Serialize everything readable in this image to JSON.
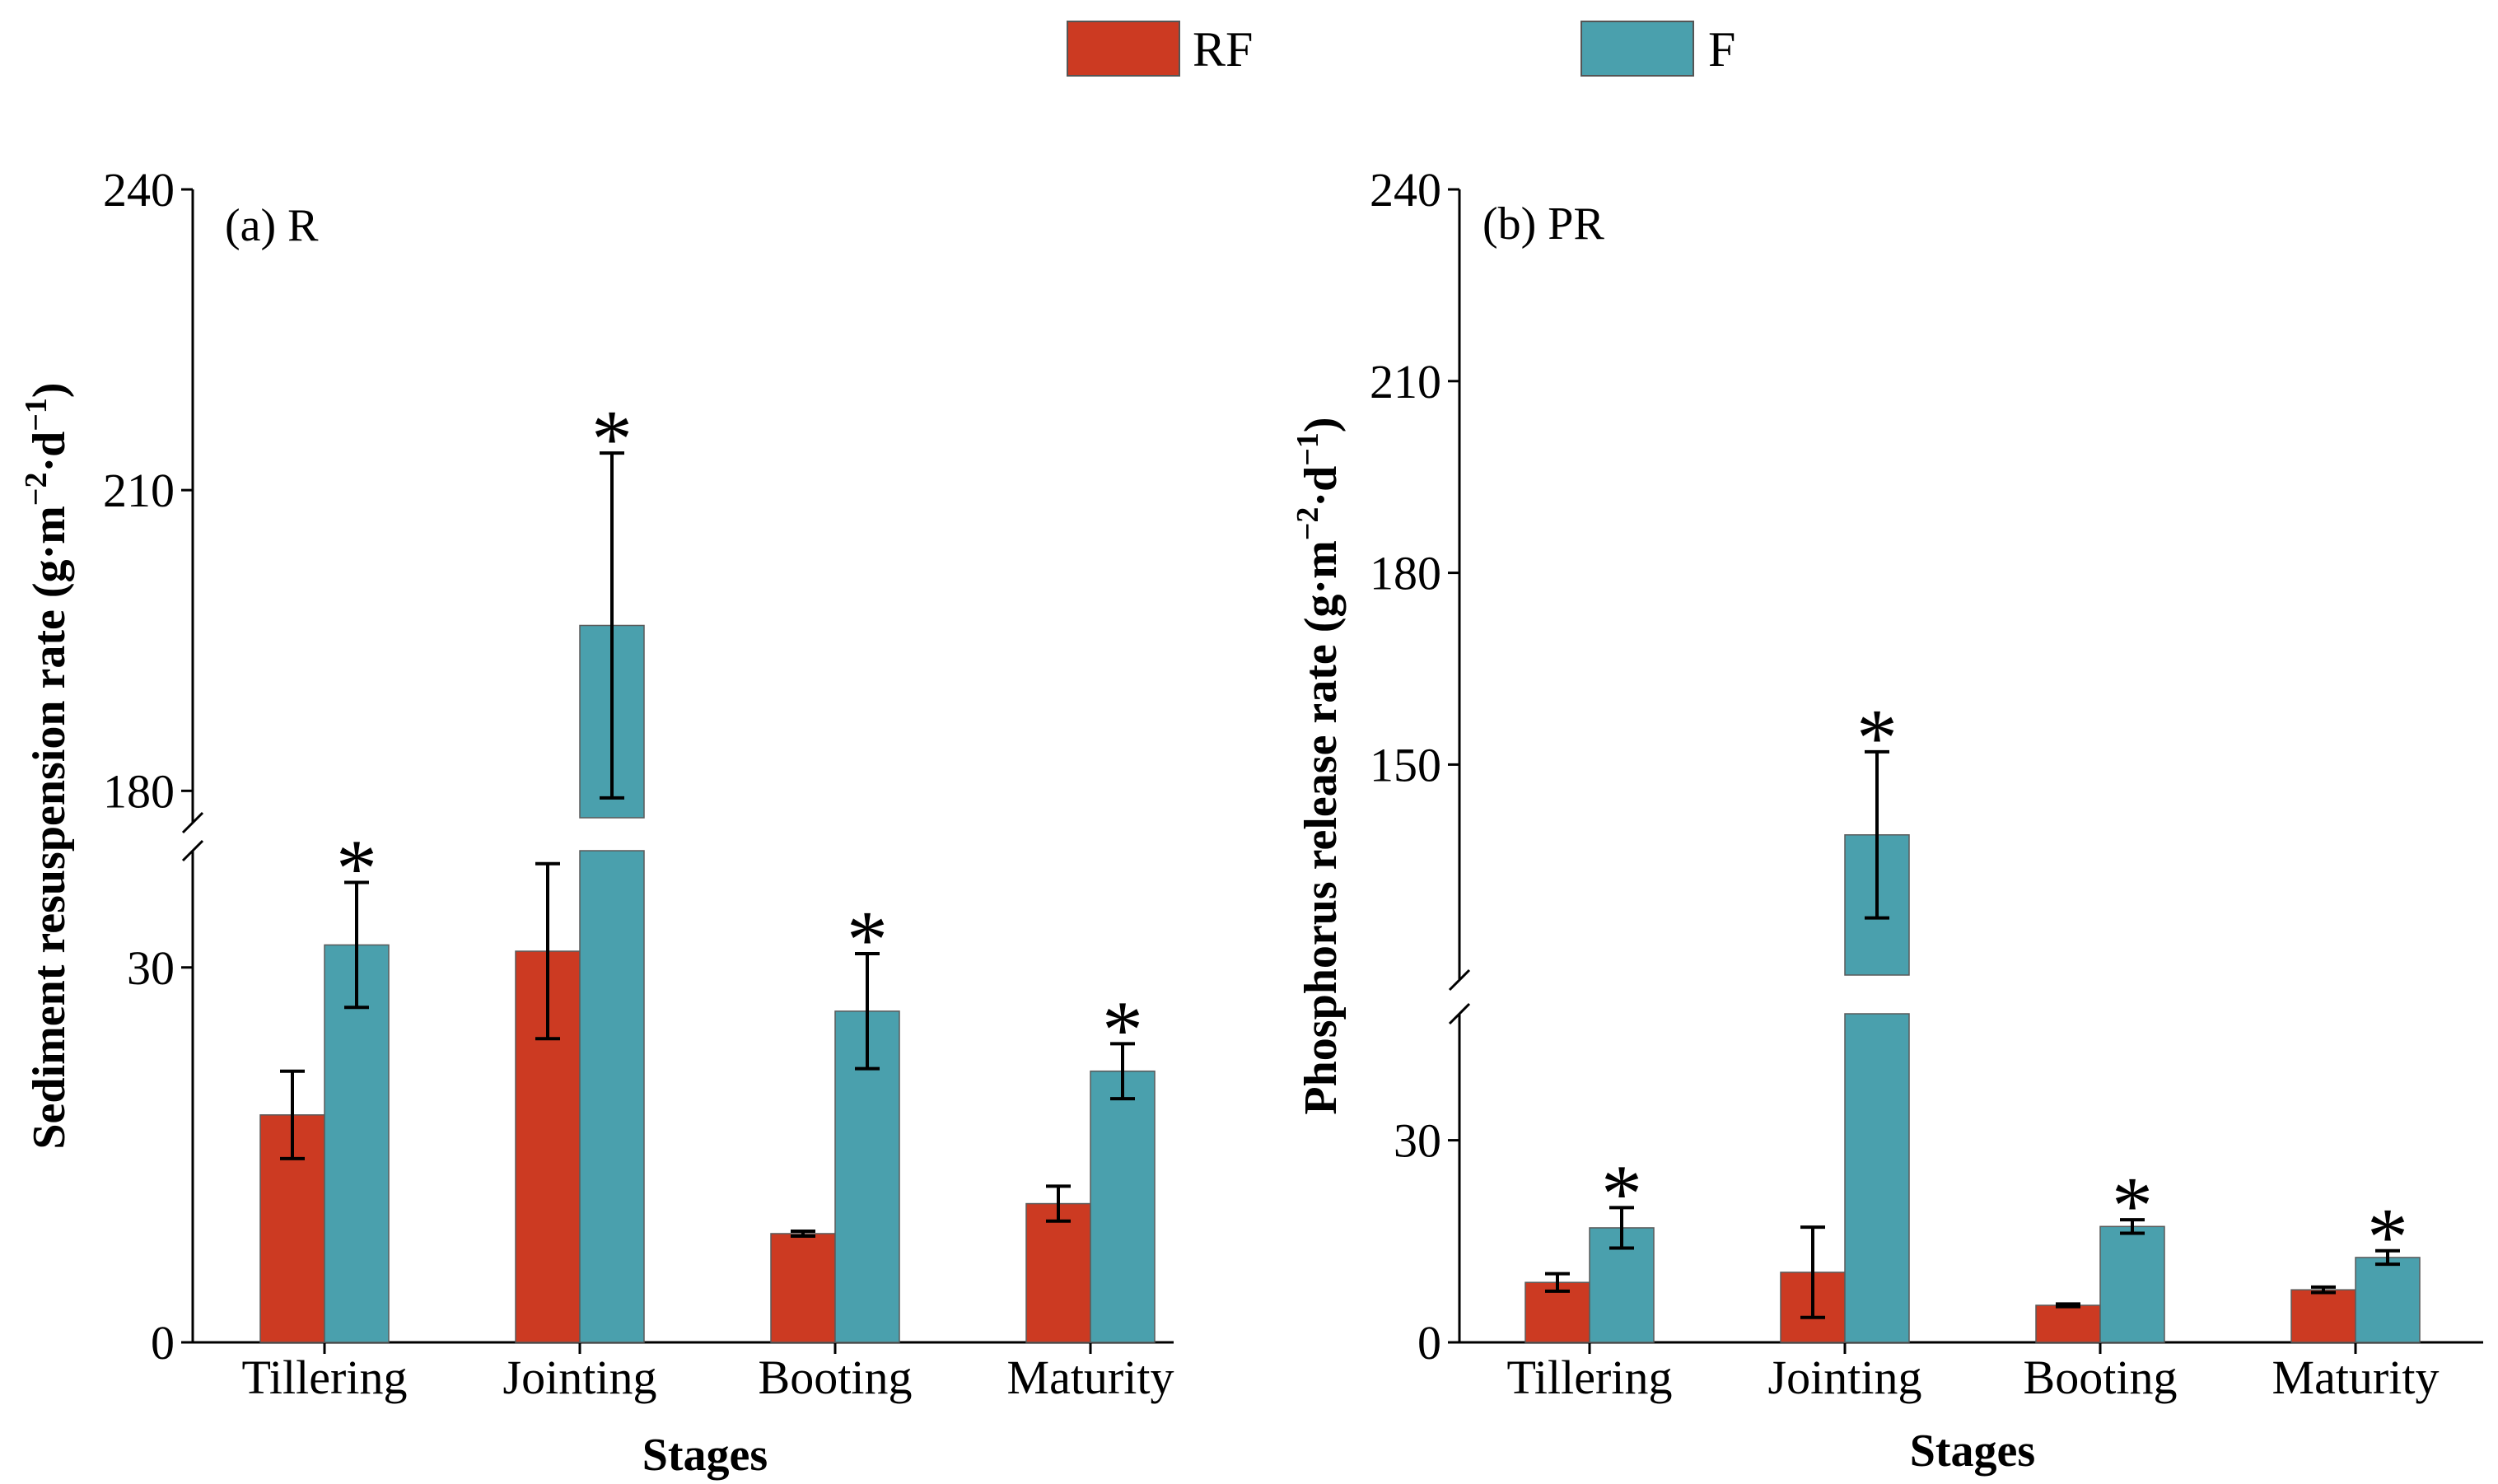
{
  "legend": [
    {
      "key": "RF",
      "label": "RF",
      "color": "#cc3a22"
    },
    {
      "key": "F",
      "label": "F",
      "color": "#4aa0ad"
    }
  ],
  "chart_data": [
    {
      "type": "bar",
      "panel_label": "(a) R",
      "xlabel": "Stages",
      "ylabel": "Sediment resuspension rate (g·m",
      "ylabel_sup1": "−2",
      "ylabel_mid": "·d",
      "ylabel_sup2": "−1",
      "ylabel_end": ")",
      "categories": [
        "Tillering",
        "Jointing",
        "Booting",
        "Maturity"
      ],
      "axis_break": {
        "lower": [
          0,
          40
        ],
        "upper": [
          176,
          240
        ]
      },
      "lower_ticks": [
        0,
        30
      ],
      "upper_ticks": [
        180,
        210,
        240
      ],
      "series": [
        {
          "name": "RF",
          "values": [
            18.2,
            31.3,
            8.7,
            11.1
          ],
          "errors": [
            3.5,
            7.0,
            0.2,
            1.4
          ],
          "sig": [
            false,
            false,
            false,
            false
          ]
        },
        {
          "name": "F",
          "values": [
            31.8,
            196.5,
            26.5,
            21.7
          ],
          "errors": [
            5.0,
            17.2,
            4.6,
            2.2
          ],
          "sig": [
            true,
            true,
            true,
            true
          ]
        }
      ],
      "sig_symbol": "*"
    },
    {
      "type": "bar",
      "panel_label": "(b) PR",
      "xlabel": "Stages",
      "ylabel": "Phosphorus release rate (g·m",
      "ylabel_sup1": "−2",
      "ylabel_mid": "·d",
      "ylabel_sup2": "−1",
      "ylabel_end": ")",
      "categories": [
        "Tillering",
        "Jointing",
        "Booting",
        "Maturity"
      ],
      "axis_break": {
        "lower": [
          0,
          50
        ],
        "upper": [
          115,
          240
        ]
      },
      "lower_ticks": [
        0,
        30
      ],
      "upper_ticks": [
        150,
        180,
        210,
        240
      ],
      "series": [
        {
          "name": "RF",
          "values": [
            8.9,
            10.4,
            5.5,
            7.8
          ],
          "errors": [
            1.3,
            6.7,
            0.2,
            0.4
          ],
          "sig": [
            false,
            false,
            false,
            false
          ]
        },
        {
          "name": "F",
          "values": [
            17.0,
            139.0,
            17.2,
            12.6
          ],
          "errors": [
            3.0,
            13.0,
            1.0,
            1.0
          ],
          "sig": [
            true,
            true,
            true,
            true
          ]
        }
      ],
      "sig_symbol": "*"
    }
  ]
}
